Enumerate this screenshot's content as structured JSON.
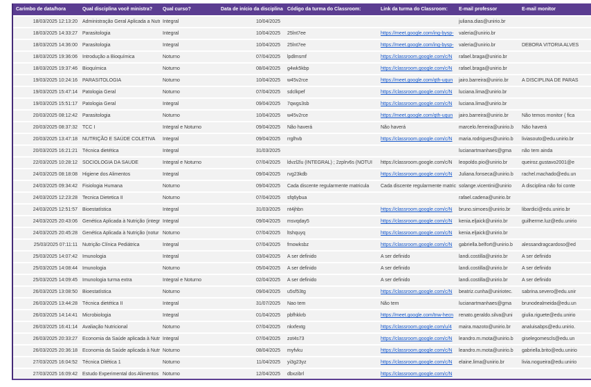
{
  "colors": {
    "header_bg": "#5b3d91",
    "table_left_border": "#462a78",
    "row_bg": "#f2f2f2",
    "body_text": "#3a3a3a",
    "link_text": "#1155cc"
  },
  "table": {
    "columns": [
      {
        "label": "Carimbo de data/hora"
      },
      {
        "label": "Qual disciplina você ministra?"
      },
      {
        "label": "Qual curso?"
      },
      {
        "label": "Data de início da disciplina"
      },
      {
        "label": "Código da turma do Classroom:"
      },
      {
        "label": "Link da turma do Classroom:"
      },
      {
        "label": "E-mail professor"
      },
      {
        "label": "E-mail monitor"
      }
    ],
    "rows": [
      {
        "timestamp": "18/03/2025 12:13:20",
        "disciplina": "Administração Geral Aplicada a Nutr",
        "curso": "Integral",
        "inicio": "10/04/2025",
        "codigo": "",
        "link": "",
        "link_type": "none",
        "professor": "juliana.dias@unirio.br",
        "monitor": ""
      },
      {
        "timestamp": "18/03/2025 14:33:27",
        "disciplina": "Parasitologia",
        "curso": "Integral",
        "inicio": "10/04/2025",
        "codigo": "25lnt7ee",
        "link": "https://meet.google.com/ing-bysp-",
        "link_type": "url",
        "professor": "valeria@unirio.br",
        "monitor": ""
      },
      {
        "timestamp": "18/03/2025 14:36:00",
        "disciplina": "Parasitologia",
        "curso": "Integral",
        "inicio": "10/04/2025",
        "codigo": "25lnt7ee",
        "link": "https://meet.google.com/ing-bysp-",
        "link_type": "url",
        "professor": "valeria@unirio.br",
        "monitor": "DEBORA VITORIA ALVES"
      },
      {
        "timestamp": "18/03/2025 19:36:06",
        "disciplina": "Introdução a Bioquímica",
        "curso": "Noturno",
        "inicio": "07/04/2025",
        "codigo": "lpdlmsmf",
        "link": "https://classroom.google.com/c/N",
        "link_type": "url",
        "professor": "rafael.braga@unirio.br",
        "monitor": ""
      },
      {
        "timestamp": "18/03/2025 19:37:46",
        "disciplina": "Bioquímica",
        "curso": "Noturno",
        "inicio": "08/04/2025",
        "codigo": "g4wk5kbp",
        "link": "https://classroom.google.com/c/N",
        "link_type": "url",
        "professor": "rafael.braga@unirio.br",
        "monitor": ""
      },
      {
        "timestamp": "19/03/2025 10:24:16",
        "disciplina": "PARASITOLOGIA",
        "curso": "Noturno",
        "inicio": "10/04/2025",
        "codigo": "w45v2rce",
        "link": "https://meet.google.com/qth-uqun",
        "link_type": "url",
        "professor": "jairo.barreira@unirio.br",
        "monitor": "A DISCIPLINA DE PARAS"
      },
      {
        "timestamp": "19/03/2025 15:47:14",
        "disciplina": "Patologia Geral",
        "curso": "Noturno",
        "inicio": "07/04/2025",
        "codigo": "sdclkpef",
        "link": "https://classroom.google.com/c/N",
        "link_type": "url",
        "professor": "luciana.lima@unirio.br",
        "monitor": ""
      },
      {
        "timestamp": "19/03/2025 15:51:17",
        "disciplina": "Patologia Geral",
        "curso": "Integral",
        "inicio": "09/04/2025",
        "codigo": "7qwgs3sb",
        "link": "https://classroom.google.com/c/N",
        "link_type": "url",
        "professor": "luciana.lima@unirio.br",
        "monitor": ""
      },
      {
        "timestamp": "20/03/2025 08:12:42",
        "disciplina": "Parasitologia",
        "curso": "Noturno",
        "inicio": "10/04/2025",
        "codigo": "w45v2rce",
        "link": "https://meet.google.com/qth-uqun",
        "link_type": "url",
        "professor": "jairo.barreira@unirio.br",
        "monitor": "Não temos monitor ( fica"
      },
      {
        "timestamp": "20/03/2025 08:37:32",
        "disciplina": "TCC I",
        "curso": "Integral e Noturno",
        "inicio": "09/04/2025",
        "codigo": "Não haverá",
        "link": "Não haverá",
        "link_type": "text",
        "professor": "marcelo.ferreira@unirio.b",
        "monitor": "Não haverá"
      },
      {
        "timestamp": "20/03/2025 13:47:18",
        "disciplina": "NUTRIÇÃO E SAÚDE COLETIVA",
        "curso": "Integral",
        "inicio": "09/04/2025",
        "codigo": "rrglhvb",
        "link": "https://classroom.google.com/c/N",
        "link_type": "url",
        "professor": "maria.rodrigues@unirio.b",
        "monitor": "liviasouto@edu.unirio.br"
      },
      {
        "timestamp": "20/03/2025 16:21:21",
        "disciplina": "Técnica dietética",
        "curso": "Integral",
        "inicio": "31/03/2025",
        "codigo": "",
        "link": "",
        "link_type": "none",
        "professor": "lucianartmanhaes@gma",
        "monitor": "não tem ainda"
      },
      {
        "timestamp": "22/03/2025 10:28:12",
        "disciplina": "SOCIOLOGIA DA SAUDE",
        "curso": "Integral e Noturno",
        "inicio": "07/04/2025",
        "codigo": "ldvzl2lu (INTEGRAL) ; 2zplrv6s (NOTUI",
        "link": "https://classroom.google.com/c/N",
        "link_type": "text",
        "professor": "leopoldo.pio@unirio.br",
        "monitor": "queiroz.gustavo2001@e"
      },
      {
        "timestamp": "24/03/2025 08:18:08",
        "disciplina": "Higiene dos Alimentos",
        "curso": "Integral",
        "inicio": "09/04/2025",
        "codigo": "rvg23kdb",
        "link": "https://classroom.google.com/c/N",
        "link_type": "url",
        "professor": "Juliana.fonseca@unirio.b",
        "monitor": "rachel.machado@edu.un"
      },
      {
        "timestamp": "24/03/2025 09:34:42",
        "disciplina": "Fisiologia Humana",
        "curso": "Noturno",
        "inicio": "09/04/2025",
        "codigo": "Cada discente regularmente matricula",
        "link": "Cada discente regularmente matric",
        "link_type": "text",
        "professor": "solange.vicentini@unirio",
        "monitor": "A disciplina não foi conte"
      },
      {
        "timestamp": "24/03/2025 12:23:28",
        "disciplina": "Tecnica Dietetica II",
        "curso": "Noturno",
        "inicio": "07/04/2025",
        "codigo": "sfq6ybua",
        "link": "",
        "link_type": "none",
        "professor": "rafael.cadena@unirio.br",
        "monitor": ""
      },
      {
        "timestamp": "24/03/2025 12:51:57",
        "disciplina": "Bioestatística",
        "curso": "Integral",
        "inicio": "31/03/2025",
        "codigo": "nt4jhbn",
        "link": "https://classroom.google.com/c/N",
        "link_type": "url",
        "professor": "bruno.simoes@unirio.br",
        "monitor": "libardici@edu.unirio.br"
      },
      {
        "timestamp": "24/03/2025 20:43:06",
        "disciplina": "Genética Aplicada à Nutrição (integr",
        "curso": "Integral",
        "inicio": "09/04/2025",
        "codigo": "msvqday5",
        "link": "https://classroom.google.com/c/N",
        "link_type": "url",
        "professor": "kenia.eljaick@unirio.br",
        "monitor": "guilherme.luz@edu.unirio"
      },
      {
        "timestamp": "24/03/2025 20:45:28",
        "disciplina": "Genética Aplicada à Nutrição (notur",
        "curso": "Noturno",
        "inicio": "07/04/2025",
        "codigo": "ltshquyq",
        "link": "https://classroom.google.com/c/N",
        "link_type": "url",
        "professor": "kenia.eljaick@unirio.br",
        "monitor": ""
      },
      {
        "timestamp": "25/03/2025 07:11:11",
        "disciplina": "Nutrição Clínica Pediátrica",
        "curso": "Integral",
        "inicio": "07/04/2025",
        "codigo": "fmowksbz",
        "link": "https://classroom.google.com/c/N",
        "link_type": "url",
        "professor": "gabriella.belfort@unirio.b",
        "monitor": "alessandragcardoso@ed"
      },
      {
        "timestamp": "25/03/2025 14:07:42",
        "disciplina": "Imunologia",
        "curso": "Integral",
        "inicio": "03/04/2025",
        "codigo": "A ser definido",
        "link": "A ser definido",
        "link_type": "text",
        "professor": "landi.costilla@unirio.br",
        "monitor": "A ser definido"
      },
      {
        "timestamp": "25/03/2025 14:08:44",
        "disciplina": "Imunologia",
        "curso": "Noturno",
        "inicio": "05/04/2025",
        "codigo": "A ser definido",
        "link": "A ser definido",
        "link_type": "text",
        "professor": "landi.costilla@unirio.br",
        "monitor": "A ser definido"
      },
      {
        "timestamp": "25/03/2025 14:09:45",
        "disciplina": "Imunologia  turma extra",
        "curso": "Integral e Noturno",
        "inicio": "02/04/2025",
        "codigo": "A ser definido",
        "link": "A ser definido",
        "link_type": "text",
        "professor": "landi.costilla@unirio.br",
        "monitor": "A ser definido"
      },
      {
        "timestamp": "26/03/2025 13:08:50",
        "disciplina": "Bioestatística",
        "curso": "Noturno",
        "inicio": "09/04/2025",
        "codigo": "u5sf53tg",
        "link": "https://classroom.google.com/c/N",
        "link_type": "url",
        "professor": "beatriz.cunha@uniriotec.",
        "monitor": "sabrina.severo@edu.unir"
      },
      {
        "timestamp": "26/03/2025 13:44:28",
        "disciplina": "Técnica dietética II",
        "curso": "Integral",
        "inicio": "31/07/2025",
        "codigo": "Nao tem",
        "link": "Não tem",
        "link_type": "text",
        "professor": "lucianartmanhaes@gma",
        "monitor": "brunodealmeida@edu.un"
      },
      {
        "timestamp": "26/03/2025 14:14:41",
        "disciplina": "Microbiologia",
        "curso": "Integral",
        "inicio": "01/04/2025",
        "codigo": "pbfhkkrb",
        "link": "https://meet.google.com/tnw-hecn",
        "link_type": "url",
        "professor": "renato.geraldo.silva@uni",
        "monitor": "giulia.riguete@edu.unirio"
      },
      {
        "timestamp": "26/03/2025 16:41:14",
        "disciplina": "Avaliação Nutricional",
        "curso": "Noturno",
        "inicio": "07/04/2025",
        "codigo": "nkxfextg",
        "link": "https://classroom.google.com/u/4",
        "link_type": "url",
        "professor": "maira.mazoto@unirio.br",
        "monitor": "analuisabps@edu.unirio."
      },
      {
        "timestamp": "26/03/2025 20:33:27",
        "disciplina": "Economia da Saúde aplicada à Nutri",
        "curso": "Integral",
        "inicio": "07/04/2025",
        "codigo": "zot4s73",
        "link": "https://classroom.google.com/c/N",
        "link_type": "url",
        "professor": "leandro.m.mota@unirio.b",
        "monitor": "giselegomescls@edu.un"
      },
      {
        "timestamp": "26/03/2025 20:36:18",
        "disciplina": "Economia da Saúde aplicada à Nutri",
        "curso": "Noturno",
        "inicio": "08/04/2025",
        "codigo": "myfvku",
        "link": "https://classroom.google.com/c/N",
        "link_type": "url",
        "professor": "leandro.m.mota@unirio.b",
        "monitor": "gabriella.brito@edu.unirio"
      },
      {
        "timestamp": "27/03/2025 16:04:52",
        "disciplina": "Técnica Ditética 1",
        "curso": "Noturno",
        "inicio": "11/04/2025",
        "codigo": "yi3g23yz",
        "link": "https://classroom.google.com/c/N",
        "link_type": "url",
        "professor": "elaine.lima@unirio.br",
        "monitor": "livia.nogueira@edu.unirio"
      },
      {
        "timestamp": "27/03/2025 16:09:42",
        "disciplina": "Estudo Experimental dos Alimentos",
        "curso": "Noturno",
        "inicio": "12/04/2025",
        "codigo": "dbxzibrl",
        "link": "https://classroom.google.com/c/N",
        "link_type": "url",
        "professor": "",
        "monitor": ""
      }
    ]
  }
}
